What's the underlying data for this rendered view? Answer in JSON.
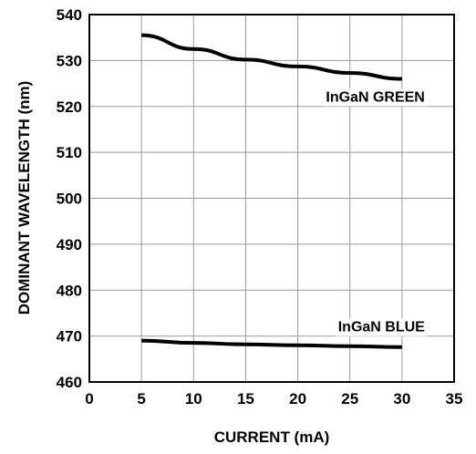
{
  "chart_data": {
    "type": "line",
    "title": "",
    "xlabel": "CURRENT (mA)",
    "ylabel": "DOMINANT WAVELENGTH (nm)",
    "xlim": [
      0,
      35
    ],
    "ylim": [
      460,
      540
    ],
    "xticks": [
      0,
      5,
      10,
      15,
      20,
      25,
      30,
      35
    ],
    "yticks": [
      460,
      470,
      480,
      490,
      500,
      510,
      520,
      530,
      540
    ],
    "grid": true,
    "legend": "none",
    "series": [
      {
        "name": "InGaN GREEN",
        "x": [
          5,
          10,
          15,
          20,
          25,
          30
        ],
        "y": [
          535.5,
          532.5,
          530.2,
          528.7,
          527.3,
          526.0
        ]
      },
      {
        "name": "InGaN BLUE",
        "x": [
          5,
          10,
          15,
          20,
          25,
          30
        ],
        "y": [
          469.0,
          468.5,
          468.2,
          468.0,
          467.8,
          467.6
        ]
      }
    ],
    "line_color": "#000000",
    "grid_color": "#9a9a9a"
  }
}
